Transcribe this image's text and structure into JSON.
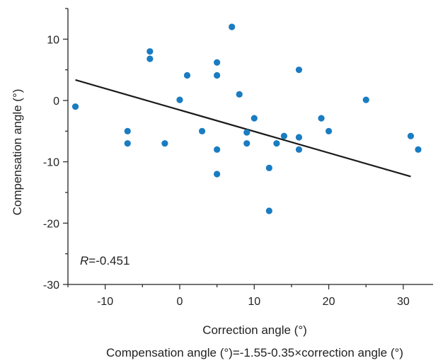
{
  "chart_data": {
    "type": "scatter",
    "xlabel": "Correction angle (°)",
    "ylabel": "Compensation angle (°)",
    "xlim": [
      -15,
      34
    ],
    "ylim": [
      -30,
      15
    ],
    "x_ticks": [
      -10,
      0,
      10,
      20,
      30
    ],
    "y_ticks": [
      -30,
      -20,
      -10,
      0,
      10
    ],
    "x_tick_labels": [
      "-10",
      "0",
      "10",
      "20",
      "30"
    ],
    "y_tick_labels": [
      "-30",
      "-20",
      "-10",
      "0",
      "10"
    ],
    "grid": false,
    "annotation": {
      "r_symbol": "R",
      "r_value": "=-0.451"
    },
    "equation": "Compensation angle (°)=-1.55-0.35×correction angle (°)",
    "regression": {
      "intercept": -1.55,
      "slope": -0.35,
      "x_range": [
        -14,
        31
      ]
    },
    "point_color": "#1a7cc1",
    "line_color": "#1a1a1a",
    "points": [
      {
        "x": -14,
        "y": -1
      },
      {
        "x": -7,
        "y": -5
      },
      {
        "x": -7,
        "y": -7
      },
      {
        "x": -4,
        "y": 8
      },
      {
        "x": -4,
        "y": 6.8
      },
      {
        "x": -2,
        "y": -7
      },
      {
        "x": 0,
        "y": 0.1
      },
      {
        "x": 1,
        "y": 4.1
      },
      {
        "x": 3,
        "y": -5
      },
      {
        "x": 5,
        "y": 6.2
      },
      {
        "x": 5,
        "y": 4.1
      },
      {
        "x": 5,
        "y": -8
      },
      {
        "x": 5,
        "y": -12
      },
      {
        "x": 7,
        "y": 12
      },
      {
        "x": 8,
        "y": 1
      },
      {
        "x": 9,
        "y": -5.2
      },
      {
        "x": 9,
        "y": -7
      },
      {
        "x": 10,
        "y": -2.9
      },
      {
        "x": 12,
        "y": -11
      },
      {
        "x": 12,
        "y": -18
      },
      {
        "x": 13,
        "y": -7
      },
      {
        "x": 14,
        "y": -5.8
      },
      {
        "x": 16,
        "y": 5
      },
      {
        "x": 16,
        "y": -6
      },
      {
        "x": 16,
        "y": -8
      },
      {
        "x": 19,
        "y": -2.9
      },
      {
        "x": 20,
        "y": -5
      },
      {
        "x": 25,
        "y": 0.1
      },
      {
        "x": 31,
        "y": -5.8
      },
      {
        "x": 32,
        "y": -8
      }
    ]
  }
}
